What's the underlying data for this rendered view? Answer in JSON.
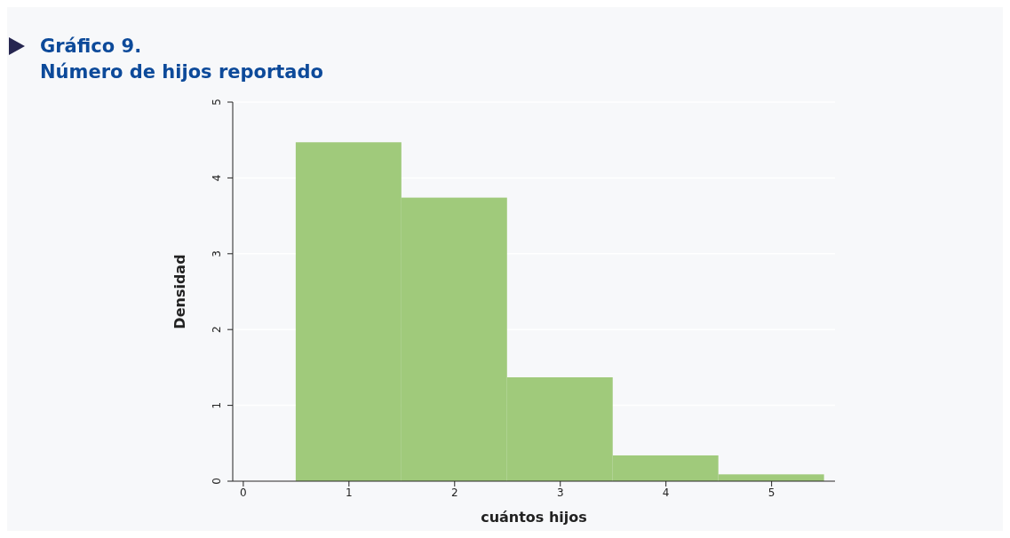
{
  "chart_data": {
    "type": "histogram",
    "title": "Gráfico 9.",
    "subtitle": "Número de hijos reportado",
    "xlabel": "cuántos hijos",
    "ylabel": "Densidad",
    "bins": [
      0.5,
      1.5,
      2.5,
      3.5,
      4.5,
      5.5
    ],
    "values": [
      4.47,
      3.74,
      1.37,
      0.34,
      0.09
    ],
    "color": "#a0ca7b",
    "xlim": [
      -0.1,
      5.6
    ],
    "xticks": [
      0,
      1,
      2,
      3,
      4,
      5
    ],
    "ylim": [
      0,
      5
    ],
    "yticks": [
      0,
      1,
      2,
      3,
      4,
      5
    ],
    "grid": "y"
  }
}
